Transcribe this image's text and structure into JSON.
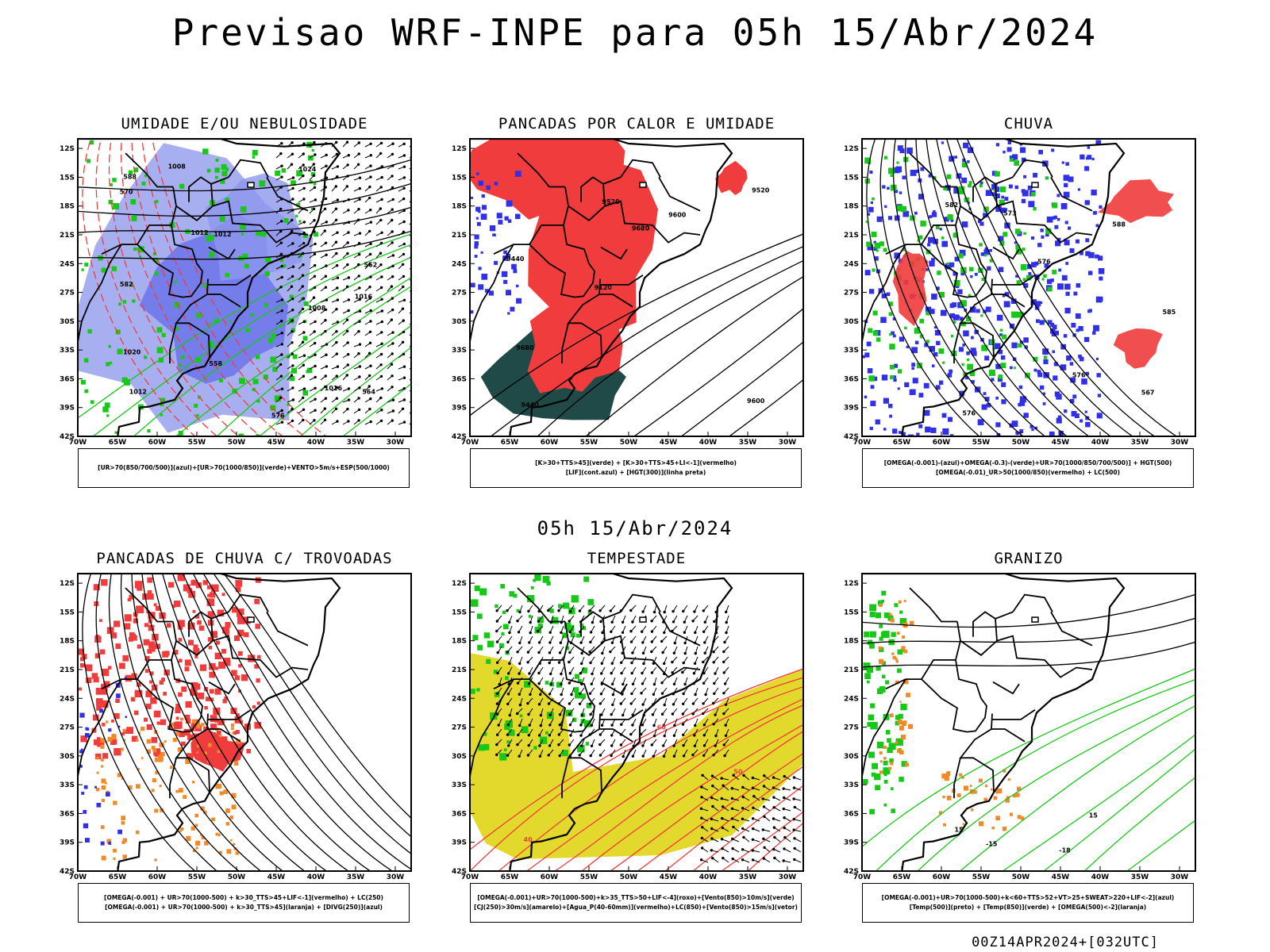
{
  "header": {
    "title": "Previsao WRF-INPE  para 05h 15/Abr/2024",
    "mid_date": "05h 15/Abr/2024",
    "footer": "00Z14APR2024+[032UTC]"
  },
  "axes": {
    "lat_labels": [
      "12S",
      "15S",
      "18S",
      "21S",
      "24S",
      "27S",
      "30S",
      "33S",
      "36S",
      "39S",
      "42S"
    ],
    "lon_labels": [
      "70W",
      "65W",
      "60W",
      "55W",
      "50W",
      "45W",
      "40W",
      "35W",
      "30W"
    ]
  },
  "colors": {
    "blue": "#3030e8",
    "lightblue": "#9ea6f0",
    "green": "#18c818",
    "red": "#f03c3c",
    "darkteal": "#1f4a48",
    "yellow": "#e3d92c",
    "orange": "#f08a28"
  },
  "panels": [
    {
      "title": "UMIDADE E/OU NEBULOSIDADE",
      "legend_lines": [
        "[UR>70(850/700/500)](azul)+[UR>70(1000/850)](verde)+VENTO>5m/s+ESP(500/1000)"
      ],
      "contour_labels": [
        "1008",
        "1016",
        "1012",
        "1008",
        "1012",
        "1016",
        "1020",
        "1024",
        "1012",
        "576",
        "570",
        "582",
        "588",
        "564",
        "558",
        "552"
      ]
    },
    {
      "title": "PANCADAS POR CALOR E UMIDADE",
      "legend_lines": [
        "[K>30+TTS>45](verde) + [K>30+TTS>45+LI<-1](vermelho)",
        "[LIF](cont.azul) + [HGT(300)](linha preta)"
      ],
      "contour_labels": [
        "9600",
        "9440",
        "9520",
        "9120",
        "9600",
        "9440",
        "9520",
        "9680",
        "9680"
      ]
    },
    {
      "title": "CHUVA",
      "legend_lines": [
        "[OMEGA(-0.001)-(azul)+OMEGA(-0.3)-(verde)+UR>70(1000/850/700/500)] + HGT(500)",
        "[OMEGA(-0.01)_UR>50(1000/850)(vermelho) + LC(500)"
      ],
      "contour_labels": [
        "585",
        "576",
        "588",
        "573",
        "582",
        "576",
        "576",
        "567"
      ]
    },
    {
      "title": "PANCADAS DE CHUVA C/ TROVOADAS",
      "legend_lines": [
        "[OMEGA(-0.001) + UR>70(1000-500) + k>30_TTS>45+LIF<-1](vermelho) + LC(250)",
        "[OMEGA(-0.001) + UR>70(1000-500) + k>30_TTS>45](laranja) + [DIVG(250)](azul)"
      ],
      "contour_labels": []
    },
    {
      "title": "TEMPESTADE",
      "legend_lines": [
        "[OMEGA(-0.001)+UR>70(1000-500)+k>35_TTS>50+LIF<-4](roxo)+[Vento(850)>10m/s](verde)",
        "[CJ(250)>30m/s](amarelo)+[Agua_P(40-60mm)](vermelho)+LC(850)+[Vento(850)>15m/s](vetor)"
      ],
      "contour_labels": [
        "40",
        "50",
        "60"
      ]
    },
    {
      "title": "GRANIZO",
      "legend_lines": [
        "[OMEGA(-0.001)+UR>70(1000-500)+k<60+TTS>52+VT>25+SWEAT>220+LIF<-2](azul)",
        "[Temp(500)](preto) + [Temp(850)](verde) + [OMEGA(500)<-2](laranja)"
      ],
      "contour_labels": [
        "-15",
        "-18",
        "15",
        "15"
      ]
    }
  ]
}
